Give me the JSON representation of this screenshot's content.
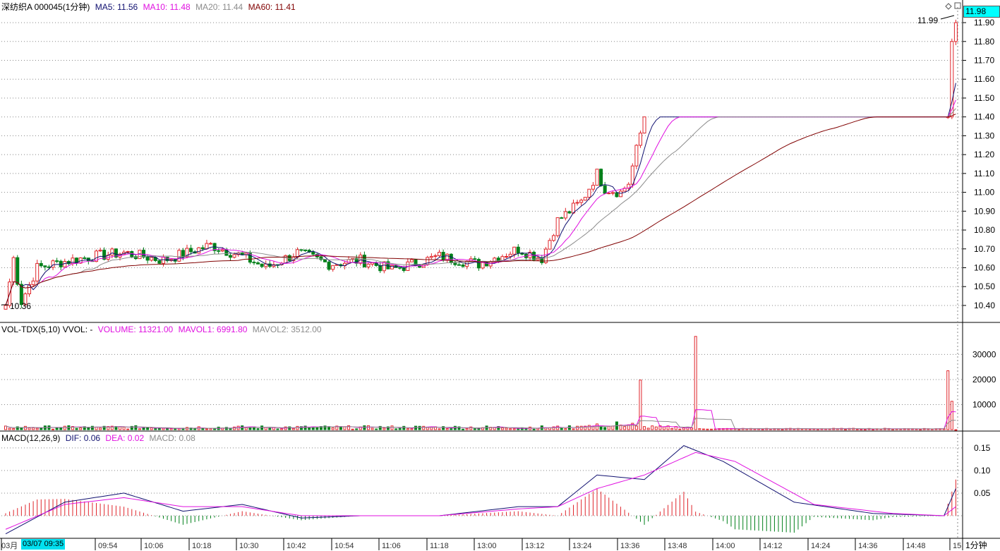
{
  "colors": {
    "up": "#e0262c",
    "down": "#00801a",
    "ma5": "#101070",
    "ma10": "#e010e0",
    "ma20": "#8c8c8c",
    "ma60": "#800000",
    "mavol1": "#e010e0",
    "mavol2": "#8c8c8c",
    "dif": "#101070",
    "dea": "#e010e0",
    "cursor_bg": "#00e0f0"
  },
  "header": {
    "stock": "深纺织A 000045(1分钟)",
    "ma5": "MA5: 11.56",
    "ma10": "MA10: 11.48",
    "ma20": "MA20: 11.44",
    "ma60": "MA60: 11.41"
  },
  "vol_header": {
    "name": "VOL-TDX(5,10) VVOL: -",
    "volume": "VOLUME: 11321.00",
    "mavol1": "MAVOL1: 6991.80",
    "mavol2": "MAVOL2: 3512.00"
  },
  "macd_header": {
    "name": "MACD(12,26,9)",
    "dif": "DIF: 0.06",
    "dea": "DEA: 0.02",
    "macd": "MACD: 0.08"
  },
  "price_box": "11.98",
  "period_label": "1分钟",
  "cursor_time": "03/07 09:35",
  "time_labels": [
    "03月",
    "09:54",
    "10:06",
    "10:18",
    "10:30",
    "10:42",
    "10:54",
    "11:06",
    "11:18",
    "13:00",
    "13:12",
    "13:24",
    "13:36",
    "13:48",
    "14:00",
    "14:12",
    "14:24",
    "14:36",
    "14:48",
    "15"
  ],
  "chart_data": {
    "type": "candlestick",
    "price_axis": {
      "ticks": [
        "11.90",
        "11.80",
        "11.70",
        "11.60",
        "11.50",
        "11.40",
        "11.30",
        "11.20",
        "11.10",
        "11.00",
        "10.90",
        "10.80",
        "10.70",
        "10.60",
        "10.50",
        "10.40"
      ],
      "ylim": [
        10.31,
        12.02
      ]
    },
    "annotations": {
      "high": "11.99",
      "low": "10.36"
    },
    "volume_axis": {
      "ticks": [
        "30000",
        "20000",
        "10000"
      ],
      "ylim": [
        0,
        38000
      ]
    },
    "macd_axis": {
      "ticks": [
        "0.15",
        "0.10",
        "0.05"
      ],
      "ylim": [
        -0.05,
        0.17
      ]
    },
    "x_labels": [
      "03月",
      "09:54",
      "10:06",
      "10:18",
      "10:30",
      "10:42",
      "10:54",
      "11:06",
      "11:18",
      "13:00",
      "13:12",
      "13:24",
      "13:36",
      "13:48",
      "14:00",
      "14:12",
      "14:24",
      "14:36",
      "14:48",
      "15"
    ],
    "price_keypoints": {
      "close": [
        [
          0,
          10.4
        ],
        [
          2,
          10.65
        ],
        [
          4,
          10.42
        ],
        [
          8,
          10.6
        ],
        [
          14,
          10.63
        ],
        [
          22,
          10.66
        ],
        [
          30,
          10.68
        ],
        [
          40,
          10.64
        ],
        [
          52,
          10.72
        ],
        [
          60,
          10.66
        ],
        [
          66,
          10.6
        ],
        [
          74,
          10.68
        ],
        [
          82,
          10.62
        ],
        [
          90,
          10.64
        ],
        [
          98,
          10.59
        ],
        [
          110,
          10.66
        ],
        [
          120,
          10.62
        ],
        [
          130,
          10.7
        ],
        [
          136,
          10.65
        ],
        [
          140,
          10.85
        ],
        [
          146,
          10.95
        ],
        [
          150,
          11.1
        ],
        [
          152,
          11.02
        ],
        [
          156,
          11.0
        ],
        [
          158,
          11.05
        ],
        [
          162,
          11.4
        ],
        [
          239,
          11.4
        ],
        [
          240,
          11.8
        ],
        [
          241,
          11.9
        ]
      ],
      "ma60_end": 11.41,
      "ma20_end": 11.44,
      "ma10_end": 11.48,
      "ma5_end": 11.56
    },
    "volume_spikes": [
      [
        161,
        19800
      ],
      [
        175,
        37200
      ],
      [
        239,
        23500
      ],
      [
        240,
        11321
      ]
    ],
    "macd_keypoints": {
      "dif": [
        [
          0,
          -0.04
        ],
        [
          15,
          0.03
        ],
        [
          30,
          0.05
        ],
        [
          45,
          0.01
        ],
        [
          60,
          0.025
        ],
        [
          75,
          -0.005
        ],
        [
          90,
          0.0
        ],
        [
          110,
          0.0
        ],
        [
          130,
          0.02
        ],
        [
          140,
          0.02
        ],
        [
          150,
          0.09
        ],
        [
          162,
          0.08
        ],
        [
          172,
          0.155
        ],
        [
          182,
          0.12
        ],
        [
          200,
          0.03
        ],
        [
          220,
          0.005
        ],
        [
          238,
          0.0
        ],
        [
          241,
          0.06
        ]
      ],
      "dea": [
        [
          0,
          -0.03
        ],
        [
          15,
          0.025
        ],
        [
          30,
          0.04
        ],
        [
          45,
          0.02
        ],
        [
          60,
          0.02
        ],
        [
          75,
          0.0
        ],
        [
          90,
          0.0
        ],
        [
          110,
          0.0
        ],
        [
          130,
          0.015
        ],
        [
          140,
          0.02
        ],
        [
          150,
          0.06
        ],
        [
          162,
          0.09
        ],
        [
          175,
          0.14
        ],
        [
          185,
          0.12
        ],
        [
          205,
          0.025
        ],
        [
          225,
          0.005
        ],
        [
          238,
          0.0
        ],
        [
          241,
          0.02
        ]
      ]
    }
  }
}
